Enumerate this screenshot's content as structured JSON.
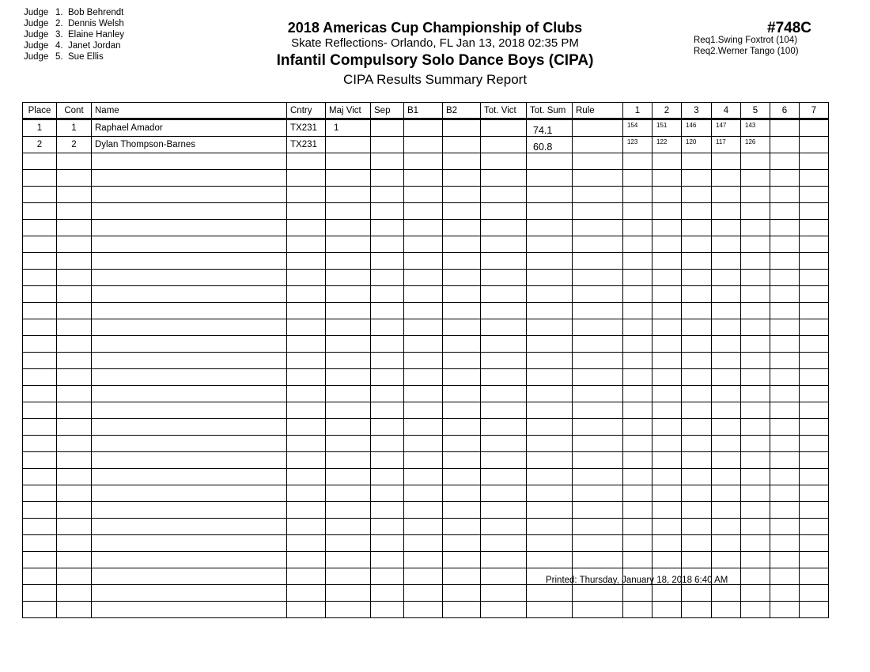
{
  "judges": [
    {
      "label": "Judge",
      "num": "1.",
      "name": "Bob Behrendt"
    },
    {
      "label": "Judge",
      "num": "2.",
      "name": "Dennis Welsh"
    },
    {
      "label": "Judge",
      "num": "3.",
      "name": "Elaine Hanley"
    },
    {
      "label": "Judge",
      "num": "4.",
      "name": "Janet Jordan"
    },
    {
      "label": "Judge",
      "num": "5.",
      "name": "Sue Ellis"
    }
  ],
  "header": {
    "title": "2018 Americas Cup Championship of Clubs",
    "subtitle": "Skate Reflections- Orlando, FL  Jan 13, 2018  02:35 PM",
    "event": "Infantil Compulsory Solo Dance Boys (CIPA)",
    "report": "CIPA Results Summary Report",
    "event_number": "#748C"
  },
  "requirements": [
    {
      "label": "Req",
      "num": "1.",
      "name": "Swing Foxtrot (104)"
    },
    {
      "label": "Req",
      "num": "2.",
      "name": "Werner Tango (100)"
    }
  ],
  "table": {
    "columns": [
      "Place",
      "Cont",
      "Name",
      "Cntry",
      "Maj Vict",
      "Sep",
      "B1",
      "B2",
      "Tot. Vict",
      "Tot. Sum",
      "Rule",
      "1",
      "2",
      "3",
      "4",
      "5",
      "6",
      "7"
    ],
    "rows": [
      {
        "place": "1",
        "cont": "1",
        "name": "Raphael Amador",
        "cntry": "TX231",
        "maj_vict": "1",
        "sep": "",
        "b1": "",
        "b2": "",
        "tot_vict": "",
        "tot_sum": "74.1",
        "rule": "",
        "scores": [
          "154",
          "151",
          "146",
          "147",
          "143",
          "",
          ""
        ]
      },
      {
        "place": "2",
        "cont": "2",
        "name": "Dylan Thompson-Barnes",
        "cntry": "TX231",
        "maj_vict": "",
        "sep": "",
        "b1": "",
        "b2": "",
        "tot_vict": "",
        "tot_sum": "60.8",
        "rule": "",
        "scores": [
          "123",
          "122",
          "120",
          "117",
          "126",
          "",
          ""
        ]
      }
    ]
  },
  "footer": {
    "printed": "Printed:  Thursday, January 18, 2018  6:40 AM"
  }
}
